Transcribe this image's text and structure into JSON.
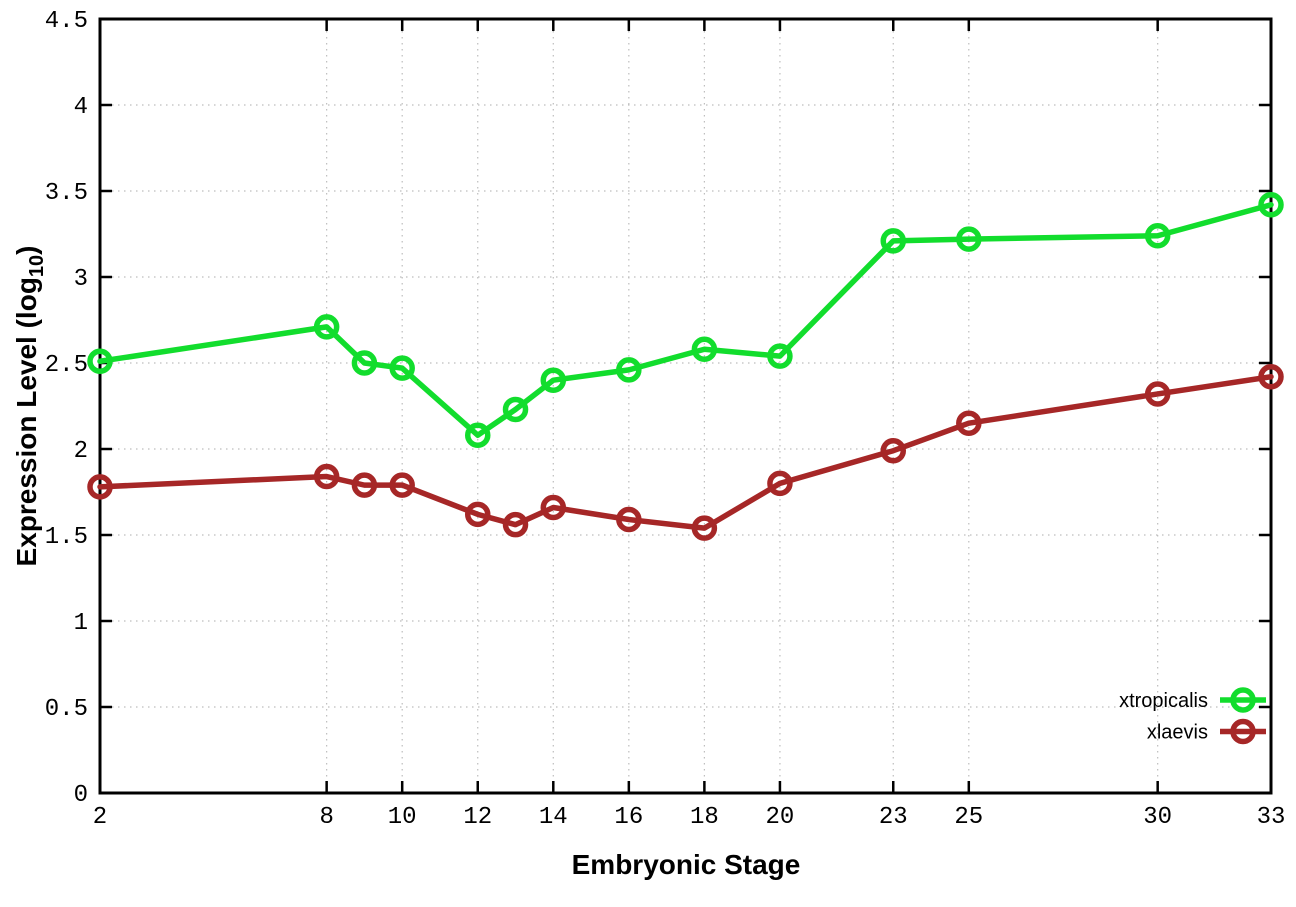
{
  "chart_data": {
    "type": "line",
    "title": "",
    "xlabel": "Embryonic Stage",
    "ylabel": {
      "main": "Expression Level (log",
      "sub": "10",
      "close": ")"
    },
    "xlim": [
      2,
      33
    ],
    "ylim": [
      0,
      4.5
    ],
    "x_ticks": [
      2,
      8,
      10,
      12,
      14,
      16,
      18,
      20,
      23,
      25,
      30,
      33
    ],
    "y_ticks": [
      0,
      0.5,
      1,
      1.5,
      2,
      2.5,
      3,
      3.5,
      4,
      4.5
    ],
    "grid": true,
    "legend_position": "inside-bottom-right",
    "x": [
      2,
      8,
      9,
      10,
      12,
      13,
      14,
      16,
      18,
      20,
      23,
      25,
      30,
      33
    ],
    "series": [
      {
        "name": "xtropicalis",
        "color": "#12dd2d",
        "marker": "open-circle",
        "values": [
          2.51,
          2.71,
          2.5,
          2.47,
          2.08,
          2.23,
          2.4,
          2.46,
          2.58,
          2.54,
          3.21,
          3.22,
          3.24,
          3.42
        ]
      },
      {
        "name": "xlaevis",
        "color": "#a62727",
        "marker": "open-circle",
        "values": [
          1.78,
          1.84,
          1.79,
          1.79,
          1.62,
          1.56,
          1.66,
          1.59,
          1.54,
          1.8,
          1.99,
          2.15,
          2.32,
          2.42
        ]
      }
    ]
  },
  "colors": {
    "background": "#ffffff",
    "grid": "#bdbdbd",
    "axis": "#000000",
    "text": "#000000"
  }
}
